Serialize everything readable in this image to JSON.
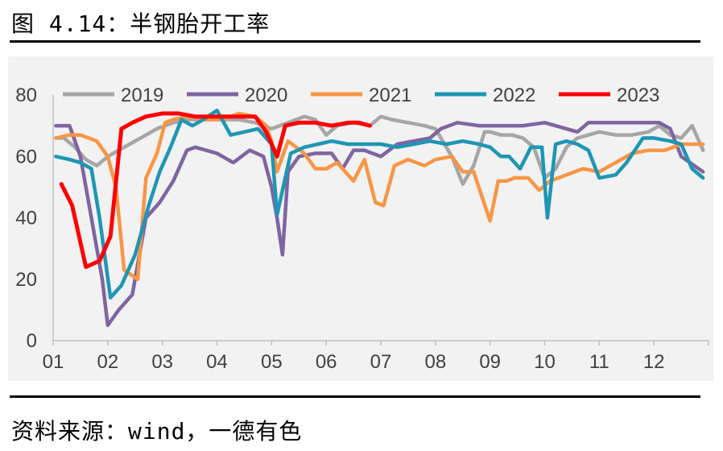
{
  "title": "图 4.14：半钢胎开工率",
  "source": "资料来源：wind，一德有色",
  "chart_data": {
    "type": "line",
    "title": "图 4.14：半钢胎开工率",
    "xlabel": "",
    "ylabel": "",
    "ylim": [
      0,
      80
    ],
    "yticks": [
      "0",
      "20",
      "40",
      "60",
      "80"
    ],
    "xlim": [
      1,
      13
    ],
    "xticks": [
      "01",
      "02",
      "03",
      "04",
      "05",
      "06",
      "07",
      "08",
      "09",
      "10",
      "11",
      "12"
    ],
    "grid": false,
    "legend": "top",
    "series": [
      {
        "name": "2019",
        "color": "#a6a6a6",
        "x": [
          1.05,
          1.2,
          1.4,
          1.6,
          1.8,
          2.0,
          2.3,
          2.6,
          2.9,
          3.2,
          3.5,
          3.8,
          4.0,
          4.2,
          4.4,
          4.7,
          5.0,
          5.3,
          5.6,
          5.8,
          6.0,
          6.2,
          6.5,
          6.8,
          7.0,
          7.2,
          7.5,
          7.8,
          8.0,
          8.3,
          8.5,
          8.7,
          8.9,
          9.0,
          9.2,
          9.4,
          9.6,
          9.8,
          10.0,
          10.2,
          10.4,
          10.6,
          10.8,
          11.0,
          11.3,
          11.6,
          11.9,
          12.1,
          12.3,
          12.5,
          12.7,
          12.9
        ],
        "y": [
          66,
          66,
          63,
          59,
          57,
          60,
          63,
          66,
          69,
          71,
          72,
          72,
          72,
          72,
          72,
          71,
          69,
          71,
          73,
          72,
          67,
          70,
          71,
          70,
          73,
          72,
          71,
          70,
          69,
          60,
          51,
          57,
          68,
          68,
          67,
          67,
          66,
          63,
          53,
          56,
          63,
          66,
          67,
          68,
          67,
          67,
          68,
          70,
          67,
          66,
          70,
          62
        ]
      },
      {
        "name": "2020",
        "color": "#8064a2",
        "x": [
          1.05,
          1.3,
          1.5,
          1.7,
          1.9,
          2.0,
          2.2,
          2.45,
          2.7,
          2.95,
          3.2,
          3.45,
          3.6,
          3.8,
          4.0,
          4.3,
          4.6,
          4.85,
          5.0,
          5.1,
          5.2,
          5.3,
          5.5,
          5.8,
          6.1,
          6.3,
          6.5,
          6.7,
          7.0,
          7.3,
          7.6,
          7.9,
          8.1,
          8.4,
          8.8,
          9.2,
          9.6,
          10.0,
          10.4,
          10.6,
          10.8,
          11.0,
          11.4,
          11.8,
          12.1,
          12.3,
          12.5,
          12.9
        ],
        "y": [
          70,
          70,
          60,
          40,
          20,
          5,
          10,
          15,
          40,
          45,
          52,
          62,
          63,
          62,
          61,
          58,
          62,
          60,
          50,
          40,
          28,
          55,
          60,
          61,
          61,
          56,
          62,
          62,
          60,
          64,
          65,
          66,
          69,
          71,
          70,
          70,
          70,
          71,
          69,
          68,
          71,
          71,
          71,
          71,
          71,
          69,
          60,
          55
        ]
      },
      {
        "name": "2021",
        "color": "#f79646",
        "x": [
          1.05,
          1.3,
          1.5,
          1.8,
          2.0,
          2.15,
          2.3,
          2.55,
          2.7,
          2.9,
          3.05,
          3.2,
          3.5,
          3.8,
          4.1,
          4.4,
          4.7,
          4.9,
          5.0,
          5.1,
          5.3,
          5.6,
          5.8,
          6.0,
          6.2,
          6.5,
          6.7,
          6.9,
          7.05,
          7.25,
          7.5,
          7.8,
          8.0,
          8.3,
          8.5,
          8.7,
          9.0,
          9.15,
          9.3,
          9.45,
          9.7,
          9.9,
          10.1,
          10.4,
          10.7,
          11.0,
          11.3,
          11.6,
          11.9,
          12.2,
          12.5,
          12.9
        ],
        "y": [
          66,
          67,
          67,
          65,
          60,
          50,
          23,
          20,
          53,
          61,
          71,
          72,
          73,
          72,
          72,
          74,
          73,
          70,
          65,
          55,
          65,
          61,
          56,
          56,
          58,
          52,
          59,
          45,
          44,
          57,
          59,
          57,
          59,
          60,
          55,
          55,
          39,
          52,
          52,
          53,
          53,
          49,
          52,
          54,
          56,
          55,
          58,
          61,
          62,
          62,
          64,
          64
        ]
      },
      {
        "name": "2022",
        "color": "#1e96b4",
        "x": [
          1.05,
          1.3,
          1.5,
          1.7,
          1.85,
          2.05,
          2.25,
          2.5,
          2.75,
          2.95,
          3.15,
          3.35,
          3.55,
          3.75,
          4.0,
          4.25,
          4.5,
          4.75,
          5.0,
          5.1,
          5.35,
          5.6,
          5.85,
          6.1,
          6.4,
          6.7,
          7.0,
          7.3,
          7.6,
          7.9,
          8.2,
          8.5,
          8.8,
          9.0,
          9.2,
          9.35,
          9.55,
          9.75,
          9.95,
          10.05,
          10.2,
          10.4,
          10.6,
          10.8,
          11.0,
          11.3,
          11.5,
          11.8,
          12.0,
          12.3,
          12.5,
          12.7,
          12.9
        ],
        "y": [
          60,
          59,
          58,
          56,
          40,
          14,
          18,
          28,
          44,
          55,
          63,
          72,
          70,
          72,
          75,
          67,
          68,
          69,
          64,
          41,
          61,
          63,
          64,
          65,
          64,
          64,
          64,
          63,
          64,
          65,
          64,
          65,
          64,
          63,
          60,
          60,
          56,
          63,
          63,
          40,
          64,
          65,
          64,
          62,
          53,
          54,
          58,
          66,
          66,
          65,
          64,
          56,
          53
        ]
      },
      {
        "name": "2023",
        "color": "#ff0000",
        "x": [
          1.15,
          1.35,
          1.6,
          1.85,
          2.05,
          2.25,
          2.45,
          2.7,
          3.0,
          3.3,
          3.6,
          4.0,
          4.4,
          4.7,
          4.9,
          5.1,
          5.25,
          5.5,
          5.8,
          6.1,
          6.4,
          6.6,
          6.8
        ],
        "y": [
          51,
          44,
          24,
          26,
          34,
          69,
          71,
          73,
          74,
          74,
          73,
          73,
          73,
          73,
          68,
          60,
          70,
          71,
          71,
          70,
          71,
          71,
          70
        ]
      }
    ]
  }
}
